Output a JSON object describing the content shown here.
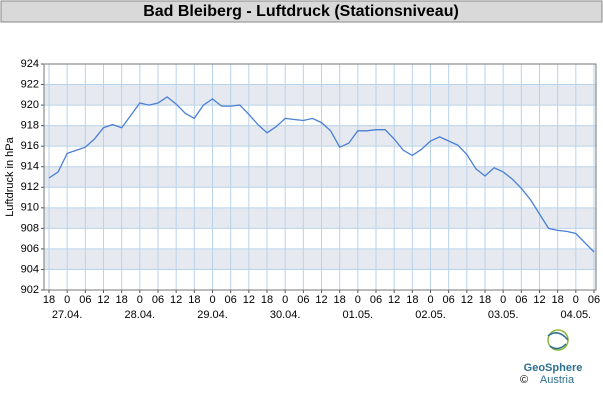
{
  "chart_data": {
    "type": "line",
    "title": "Bad Bleiberg - Luftdruck (Stationsniveau)",
    "y_label": "Luftdruck in hPa",
    "x": [
      "18",
      null,
      "0",
      null,
      "06",
      null,
      "12",
      null,
      "18",
      null,
      "0",
      null,
      "06",
      null,
      "12",
      null,
      "18",
      null,
      "0",
      null,
      "06",
      null,
      "12",
      null,
      "18",
      null,
      "0",
      null,
      "06",
      null,
      "12",
      null,
      "18",
      null,
      "0",
      null,
      "06",
      null,
      "12",
      null,
      "18",
      null,
      "0",
      null,
      "06",
      null,
      "12",
      null,
      "18",
      null,
      "0",
      null,
      "06",
      null,
      "12",
      null,
      "18",
      null,
      "0",
      null,
      "06"
    ],
    "x_dates": [
      null,
      null,
      "27.04.",
      null,
      null,
      null,
      null,
      null,
      null,
      null,
      "28.04.",
      null,
      null,
      null,
      null,
      null,
      null,
      null,
      "29.04.",
      null,
      null,
      null,
      null,
      null,
      null,
      null,
      "30.04.",
      null,
      null,
      null,
      null,
      null,
      null,
      null,
      "01.05.",
      null,
      null,
      null,
      null,
      null,
      null,
      null,
      "02.05.",
      null,
      null,
      null,
      null,
      null,
      null,
      null,
      "03.05.",
      null,
      null,
      null,
      null,
      null,
      null,
      null,
      "04.05.",
      null,
      null
    ],
    "series": [
      {
        "name": "Luftdruck",
        "color": "#4a7fd4",
        "values": [
          912.9,
          913.5,
          915.3,
          915.6,
          915.9,
          916.7,
          917.8,
          918.1,
          917.8,
          919.0,
          920.2,
          920.0,
          920.2,
          920.8,
          920.1,
          919.2,
          918.7,
          920.0,
          920.6,
          919.9,
          919.9,
          920.0,
          919.1,
          918.1,
          917.3,
          917.9,
          918.7,
          918.6,
          918.5,
          918.7,
          918.3,
          917.5,
          915.9,
          916.3,
          917.5,
          917.5,
          917.6,
          917.6,
          916.7,
          915.6,
          915.1,
          915.7,
          916.5,
          916.9,
          916.5,
          916.1,
          915.2,
          913.8,
          913.1,
          913.9,
          913.5,
          912.8,
          911.9,
          910.8,
          909.4,
          908.0,
          907.8,
          907.7,
          907.5,
          906.6,
          905.7
        ]
      }
    ],
    "ylim": [
      902,
      924
    ],
    "yticks": [
      902,
      904,
      906,
      908,
      910,
      912,
      914,
      916,
      918,
      920,
      922,
      924
    ],
    "grid": true
  },
  "logo": {
    "name": "GeoSphere",
    "sub": "Austria",
    "copyright": "©"
  }
}
